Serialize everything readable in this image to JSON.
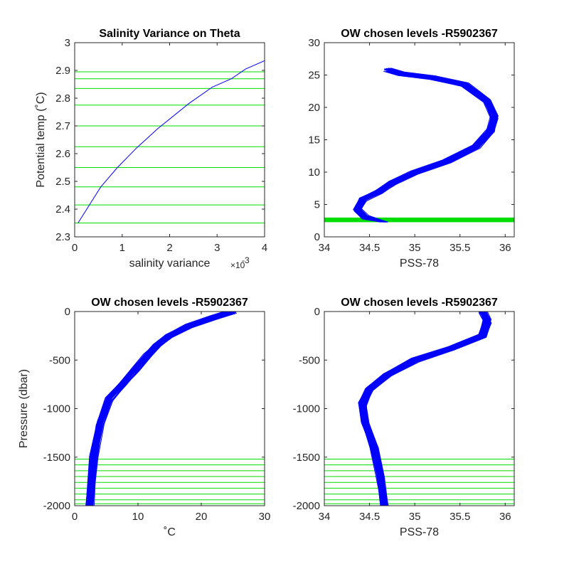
{
  "chart_data": [
    {
      "type": "line",
      "title": "Salinity Variance on Theta",
      "xlabel": "salinity variance",
      "x_exponent_label": "×10",
      "x_exponent_power": "-3",
      "ylabel": "Potential temp (˚C)",
      "xlim": [
        0,
        4
      ],
      "ylim": [
        2.3,
        3.0
      ],
      "x_ticks": [
        0,
        1,
        2,
        3,
        4
      ],
      "x_tick_labels": [
        "0",
        "1",
        "2",
        "3",
        "4"
      ],
      "y_ticks": [
        2.3,
        2.4,
        2.5,
        2.6,
        2.7,
        2.8,
        2.9,
        3.0
      ],
      "y_tick_labels": [
        "2.3",
        "2.4",
        "2.5",
        "2.6",
        "2.7",
        "2.8",
        "2.9",
        "3"
      ],
      "series": [
        {
          "color": "#0000ff",
          "x": [
            0.07,
            0.55,
            0.9,
            1.3,
            1.75,
            2.4,
            2.9,
            3.3,
            3.6,
            4.0
          ],
          "y": [
            2.35,
            2.48,
            2.55,
            2.62,
            2.69,
            2.78,
            2.84,
            2.87,
            2.905,
            2.935
          ]
        }
      ],
      "hlines": {
        "color": "#00dd00",
        "values": [
          2.35,
          2.415,
          2.48,
          2.55,
          2.625,
          2.7,
          2.775,
          2.835,
          2.87,
          2.895
        ]
      }
    },
    {
      "type": "line",
      "title": "OW chosen levels -R5902367",
      "xlabel": "PSS-78",
      "ylabel": "",
      "xlim": [
        34,
        36.1
      ],
      "ylim": [
        0,
        30
      ],
      "x_ticks": [
        34,
        34.5,
        35,
        35.5,
        36
      ],
      "x_tick_labels": [
        "34",
        "34.5",
        "35",
        "35.5",
        "36"
      ],
      "y_ticks": [
        0,
        5,
        10,
        15,
        20,
        25,
        30
      ],
      "y_tick_labels": [
        "0",
        "5",
        "10",
        "15",
        "20",
        "25",
        "30"
      ],
      "series": [
        {
          "color": "#0000ff",
          "x": [
            34.66,
            34.45,
            34.36,
            34.42,
            34.6,
            34.75,
            35.0,
            35.35,
            35.68,
            35.84,
            35.88,
            35.8,
            35.55,
            35.2,
            34.85,
            34.7
          ],
          "y": [
            2.3,
            3.0,
            4.2,
            5.8,
            7.0,
            8.4,
            10.0,
            11.7,
            14.0,
            16.5,
            18.5,
            21.0,
            23.5,
            24.6,
            25.2,
            25.8
          ]
        }
      ],
      "hlines": {
        "color": "#00dd00",
        "values": [
          2.35,
          2.415,
          2.48,
          2.55,
          2.625,
          2.7,
          2.775,
          2.835,
          2.87,
          2.895
        ]
      }
    },
    {
      "type": "line",
      "title": "OW chosen levels -R5902367",
      "xlabel": "˚C",
      "ylabel": "Pressure (dbar)",
      "xlim": [
        0,
        30
      ],
      "ylim": [
        -2000,
        0
      ],
      "x_ticks": [
        0,
        10,
        20,
        30
      ],
      "x_tick_labels": [
        "0",
        "10",
        "20",
        "30"
      ],
      "y_ticks": [
        -2000,
        -1500,
        -1000,
        -500,
        0
      ],
      "y_tick_labels": [
        "-2000",
        "-1500",
        "-1000",
        "-500",
        "0"
      ],
      "series": [
        {
          "color": "#0000ff",
          "x": [
            2.4,
            3.0,
            4.0,
            5.5,
            7.5,
            9.5,
            11.5,
            13.0,
            15.0,
            18.0,
            22.0,
            25.0
          ],
          "y": [
            -2000,
            -1500,
            -1150,
            -900,
            -750,
            -600,
            -450,
            -350,
            -250,
            -150,
            -60,
            0
          ]
        }
      ],
      "hlines": {
        "color": "#00dd00",
        "values": [
          -1520,
          -1580,
          -1640,
          -1700,
          -1760,
          -1820,
          -1880,
          -1940,
          -1980
        ]
      }
    },
    {
      "type": "line",
      "title": "OW chosen levels -R5902367",
      "xlabel": "PSS-78",
      "ylabel": "",
      "xlim": [
        34,
        36.1
      ],
      "ylim": [
        -2000,
        0
      ],
      "x_ticks": [
        34,
        34.5,
        35,
        35.5,
        36
      ],
      "x_tick_labels": [
        "34",
        "34.5",
        "35",
        "35.5",
        "36"
      ],
      "y_ticks": [
        -2000,
        -1500,
        -1000,
        -500,
        0
      ],
      "y_tick_labels": [
        "-2000",
        "-1500",
        "-1000",
        "-500",
        "0"
      ],
      "series": [
        {
          "color": "#0000ff",
          "x": [
            34.66,
            34.62,
            34.55,
            34.45,
            34.42,
            34.5,
            34.7,
            35.0,
            35.4,
            35.75,
            35.8,
            35.75
          ],
          "y": [
            -2000,
            -1700,
            -1400,
            -1150,
            -950,
            -800,
            -650,
            -500,
            -380,
            -250,
            -100,
            0
          ]
        }
      ],
      "hlines": {
        "color": "#00dd00",
        "values": [
          -1520,
          -1580,
          -1640,
          -1700,
          -1760,
          -1820,
          -1880,
          -1940,
          -1980
        ]
      }
    }
  ]
}
